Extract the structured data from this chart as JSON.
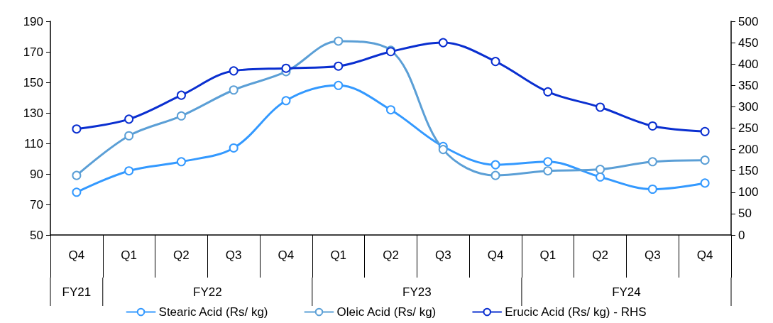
{
  "chart_data": {
    "type": "line",
    "categories": [
      "Q4",
      "Q1",
      "Q2",
      "Q3",
      "Q4",
      "Q1",
      "Q2",
      "Q3",
      "Q4",
      "Q1",
      "Q2",
      "Q3",
      "Q4"
    ],
    "annotations": [
      "FY21",
      "FY22",
      "FY23",
      "FY24"
    ],
    "series": [
      {
        "name": "Stearic Acid (Rs/ kg)",
        "color": "#3399ff",
        "values": [
          78,
          92,
          98,
          107,
          138,
          148,
          132,
          108,
          96,
          98,
          88,
          80,
          84
        ]
      },
      {
        "name": "Oleic Acid (Rs/ kg)",
        "color": "#5b9fd6",
        "values": [
          89,
          115,
          128,
          145,
          157,
          177,
          171,
          106,
          89,
          92,
          93,
          98,
          99
        ]
      },
      {
        "name": "Erucic Acid (Rs/ kg) - RHS",
        "color": "#0a2fd0",
        "axis": "y2",
        "values": [
          248,
          271,
          327,
          384,
          390,
          395,
          429,
          450,
          406,
          335,
          299,
          255,
          242
        ]
      }
    ],
    "ylim": [
      50,
      190
    ],
    "yticks": [
      50,
      70,
      90,
      110,
      130,
      150,
      170,
      190
    ],
    "y2lim": [
      0,
      500
    ],
    "y2ticks": [
      0,
      50,
      100,
      150,
      200,
      250,
      300,
      350,
      400,
      450,
      500
    ],
    "marker": "circle",
    "line_style": "solid",
    "grid": false,
    "legend": "bottom"
  }
}
